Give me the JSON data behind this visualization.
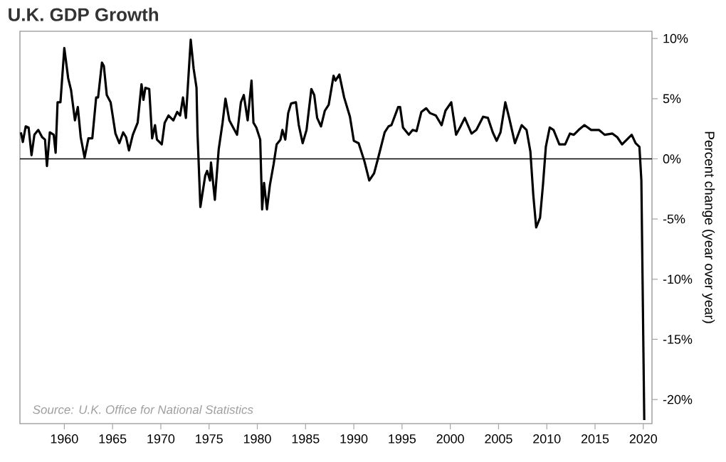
{
  "chart_data": {
    "type": "line",
    "title": "U.K. GDP Growth",
    "ylabel": "Percent change (year over year)",
    "annotations": [
      "Source: U.K. Office for National Statistics"
    ],
    "xlim": [
      1955.4,
      2020.9
    ],
    "xticks": [
      1960,
      1965,
      1970,
      1975,
      1980,
      1985,
      1990,
      1995,
      2000,
      2005,
      2010,
      2015,
      2020
    ],
    "ylim": [
      -22,
      10.6
    ],
    "yticks": [
      {
        "value": 10,
        "label": "10%"
      },
      {
        "value": 5,
        "label": "5%"
      },
      {
        "value": 0,
        "label": "0%"
      },
      {
        "value": -5,
        "label": "-5%"
      },
      {
        "value": -10,
        "label": "-10%"
      },
      {
        "value": -15,
        "label": "-15%"
      },
      {
        "value": -20,
        "label": "-20%"
      }
    ],
    "ref_lines": [
      {
        "axis": "y",
        "value": 0,
        "color": "#000000"
      }
    ],
    "marker": "none",
    "line_style": "solid",
    "series": [
      {
        "color": "#000000",
        "x": [
          1955.5,
          1955.7,
          1956.0,
          1956.3,
          1956.6,
          1956.9,
          1957.3,
          1957.7,
          1958.0,
          1958.2,
          1958.5,
          1958.9,
          1959.1,
          1959.3,
          1959.6,
          1960.0,
          1960.4,
          1960.7,
          1961.1,
          1961.4,
          1961.7,
          1962.1,
          1962.5,
          1962.9,
          1963.3,
          1963.5,
          1963.9,
          1964.1,
          1964.4,
          1964.8,
          1965.3,
          1965.7,
          1966.1,
          1966.4,
          1966.7,
          1967.1,
          1967.6,
          1968.0,
          1968.2,
          1968.4,
          1968.8,
          1969.1,
          1969.4,
          1969.6,
          1970.1,
          1970.4,
          1970.8,
          1971.3,
          1971.7,
          1972.0,
          1972.3,
          1972.6,
          1973.1,
          1973.4,
          1973.7,
          1973.8,
          1974.1,
          1974.6,
          1974.8,
          1975.1,
          1975.2,
          1975.6,
          1976.0,
          1976.4,
          1976.7,
          1977.1,
          1977.5,
          1977.9,
          1978.3,
          1978.6,
          1979.0,
          1979.4,
          1979.6,
          1979.9,
          1980.3,
          1980.5,
          1980.7,
          1981.0,
          1981.3,
          1981.7,
          1982.0,
          1982.4,
          1982.6,
          1982.9,
          1983.2,
          1983.5,
          1984.0,
          1984.3,
          1984.7,
          1985.1,
          1985.6,
          1985.9,
          1986.2,
          1986.6,
          1987.0,
          1987.4,
          1987.9,
          1988.1,
          1988.5,
          1989.0,
          1989.6,
          1990.0,
          1990.5,
          1991.1,
          1991.6,
          1992.1,
          1992.5,
          1993.2,
          1993.6,
          1993.9,
          1994.6,
          1994.8,
          1995.1,
          1995.7,
          1996.1,
          1996.5,
          1997.0,
          1997.5,
          1997.9,
          1998.5,
          1999.1,
          1999.5,
          2000.1,
          2000.6,
          2001.0,
          2001.5,
          2002.2,
          2002.7,
          2003.4,
          2003.9,
          2004.4,
          2004.8,
          2005.2,
          2005.7,
          2006.1,
          2006.7,
          2007.4,
          2007.9,
          2008.3,
          2008.6,
          2008.9,
          2009.3,
          2009.6,
          2009.9,
          2010.3,
          2010.7,
          2011.3,
          2011.9,
          2012.4,
          2012.8,
          2013.3,
          2013.9,
          2014.6,
          2015.4,
          2016.0,
          2016.8,
          2017.3,
          2017.8,
          2018.3,
          2018.8,
          2019.2,
          2019.6,
          2019.8,
          2020.1
        ],
        "values": [
          2.2,
          1.4,
          2.7,
          2.6,
          0.3,
          2.0,
          2.4,
          1.8,
          1.6,
          -0.6,
          2.2,
          2.0,
          0.5,
          4.7,
          4.7,
          9.2,
          6.7,
          5.7,
          3.2,
          4.3,
          1.8,
          0.1,
          1.7,
          1.7,
          5.1,
          5.1,
          8.0,
          7.7,
          5.3,
          4.7,
          2.1,
          1.3,
          2.2,
          1.8,
          0.7,
          2.0,
          3.0,
          6.2,
          4.9,
          5.9,
          5.8,
          1.7,
          2.8,
          1.6,
          1.2,
          3.0,
          3.6,
          3.2,
          3.9,
          3.6,
          5.1,
          3.4,
          9.9,
          7.5,
          5.9,
          2.2,
          -4.0,
          -1.4,
          -1.0,
          -1.8,
          -0.3,
          -3.4,
          0.8,
          3.0,
          5.0,
          3.2,
          2.6,
          2.0,
          4.7,
          5.3,
          3.2,
          6.5,
          3.0,
          2.6,
          1.6,
          -4.2,
          -2.0,
          -4.2,
          -2.2,
          -0.4,
          1.2,
          1.6,
          2.4,
          1.6,
          3.8,
          4.6,
          4.7,
          2.8,
          1.3,
          2.4,
          5.8,
          5.3,
          3.4,
          2.7,
          4.0,
          4.5,
          6.9,
          6.5,
          7.0,
          5.1,
          3.5,
          1.5,
          1.3,
          -0.2,
          -1.8,
          -1.2,
          0.0,
          2.2,
          2.7,
          2.8,
          4.3,
          4.3,
          2.6,
          2.0,
          2.4,
          2.3,
          3.9,
          4.2,
          3.8,
          3.6,
          2.8,
          4.0,
          4.7,
          2.0,
          2.6,
          3.4,
          2.1,
          2.4,
          3.5,
          3.4,
          2.2,
          1.5,
          2.2,
          4.7,
          3.4,
          1.3,
          2.8,
          2.4,
          0.6,
          -3.0,
          -5.7,
          -4.9,
          -2.2,
          1.0,
          2.6,
          2.4,
          1.2,
          1.2,
          2.1,
          2.0,
          2.4,
          2.8,
          2.4,
          2.4,
          2.0,
          2.1,
          1.8,
          1.2,
          1.6,
          2.0,
          1.3,
          1.0,
          -1.8,
          -21.7
        ]
      }
    ]
  }
}
